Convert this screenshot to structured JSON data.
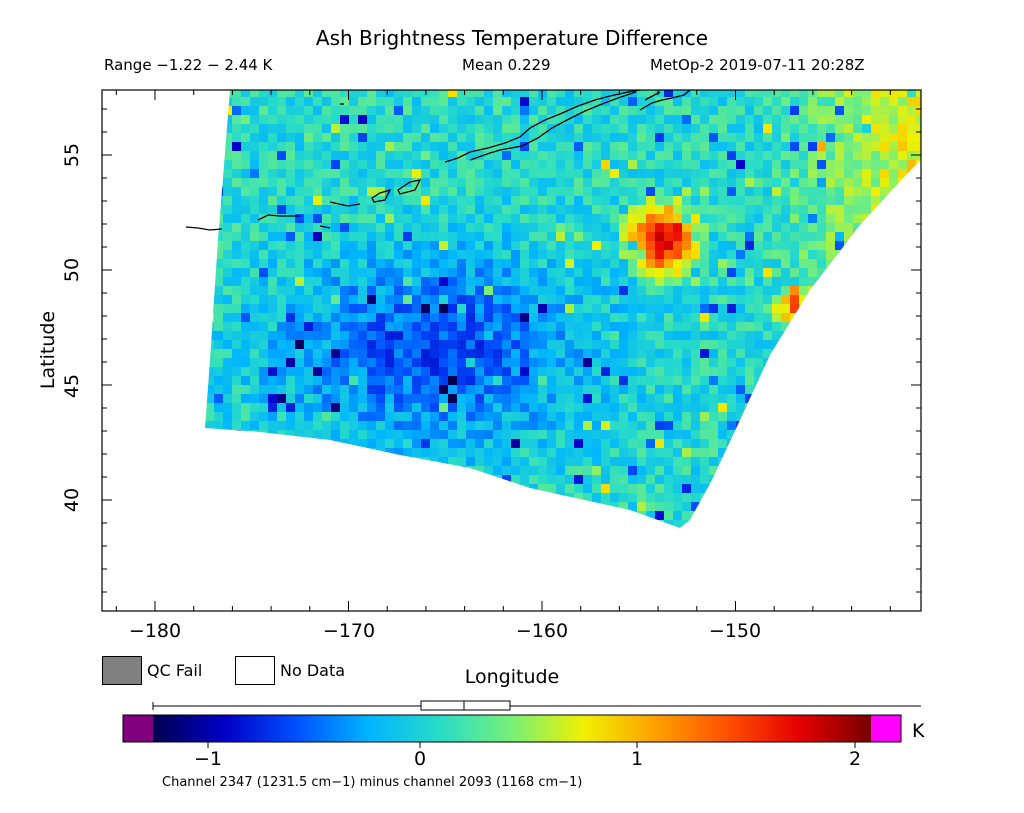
{
  "header": {
    "title": "Ash Brightness Temperature Difference",
    "range": "Range −1.22 − 2.44 K",
    "mean": "Mean 0.229",
    "satellite_time": "MetOp-2 2019-07-11 20:28Z"
  },
  "map": {
    "x_axis_label": "Longitude",
    "y_axis_label": "Latitude",
    "x_ticks": [
      "−180",
      "−170",
      "−160",
      "−150"
    ],
    "y_ticks": [
      "40",
      "45",
      "50",
      "55"
    ],
    "lon_range": [
      -183,
      -141
    ],
    "lat_range": [
      35,
      58
    ],
    "features": [
      "swath-coverage",
      "coastline-alaska-peninsula",
      "aleutian-islands",
      "ash-signal-hotspot"
    ],
    "hotspot_center": {
      "lon": -154,
      "lat": 51.5
    }
  },
  "legend": {
    "qc_fail_label": "QC Fail",
    "no_data_label": "No Data",
    "qc_fail_color": "#808080",
    "no_data_color": "#ffffff"
  },
  "colorbar": {
    "unit": "K",
    "ticks": [
      "−1",
      "0",
      "1",
      "2"
    ],
    "range": [
      -1.22,
      2.44
    ],
    "under_color": "#800080",
    "over_color": "#ff00ff",
    "stops": [
      "#000050",
      "#0000c8",
      "#0050ff",
      "#00b4ff",
      "#28dcc8",
      "#78f078",
      "#f0f000",
      "#ffa000",
      "#ff5000",
      "#e60000",
      "#780000"
    ],
    "caption": "Channel 2347 (1231.5 cm−1) minus channel 2093 (1168 cm−1)"
  }
}
